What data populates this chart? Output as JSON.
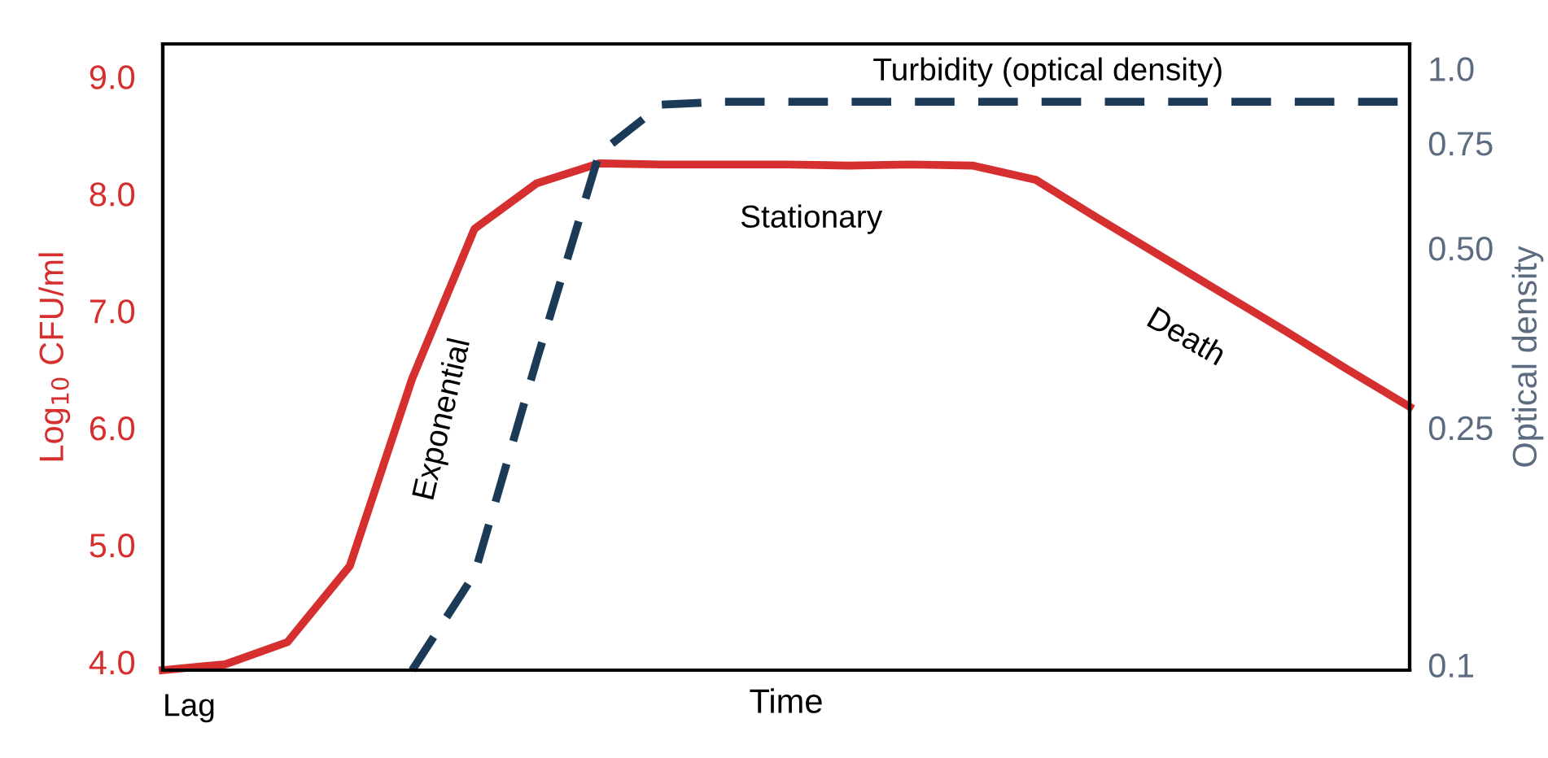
{
  "chart_data": {
    "type": "line",
    "xlabel": "Time",
    "ylabel": "Log$_{10}$ CFU/ml",
    "y2label": "Optical density",
    "categories": [
      null,
      null,
      null,
      null,
      null,
      null,
      null,
      null,
      null,
      null,
      null,
      null,
      null,
      null,
      null,
      null,
      null,
      null,
      null,
      null,
      null
    ],
    "ylim": [
      3.93,
      9.28
    ],
    "yticks": [
      {
        "value": 4,
        "label": "4.0"
      },
      {
        "value": 5,
        "label": "5.0"
      },
      {
        "value": 6,
        "label": "6.0"
      },
      {
        "value": 7,
        "label": "7.0"
      },
      {
        "value": 8,
        "label": "8.0"
      },
      {
        "value": 9,
        "label": "9.0"
      }
    ],
    "log": "y2",
    "y2lim": [
      0.098,
      1.1
    ],
    "y2ticks": [
      0.1,
      0.25,
      {
        "value": 0.5,
        "label": "0.50"
      },
      0.75,
      {
        "value": 1,
        "label": "1.0"
      }
    ],
    "grid": false,
    "marker": "none",
    "series": [
      {
        "color": "#d62f2f",
        "line_style": "solid",
        "values": [
          3.93,
          3.98,
          4.17,
          4.82,
          6.42,
          7.7,
          8.09,
          8.26,
          8.25,
          8.25,
          8.25,
          8.24,
          8.25,
          8.24,
          8.12,
          7.79,
          7.47,
          7.15,
          6.83,
          6.5,
          6.18
        ]
      },
      {
        "color": "#1b3a57",
        "line_style": "dashed",
        "axis": "y2",
        "values": [
          null,
          null,
          null,
          null,
          0.098,
          0.142,
          0.325,
          0.72,
          0.87,
          0.88,
          0.88,
          0.88,
          0.88,
          0.88,
          0.88,
          0.88,
          0.88,
          0.88,
          0.88,
          0.88,
          0.88
        ]
      }
    ],
    "annotations": [
      "Turbidity (optical density)",
      "Stationary",
      "Exponential",
      "Death",
      "Lag"
    ]
  }
}
